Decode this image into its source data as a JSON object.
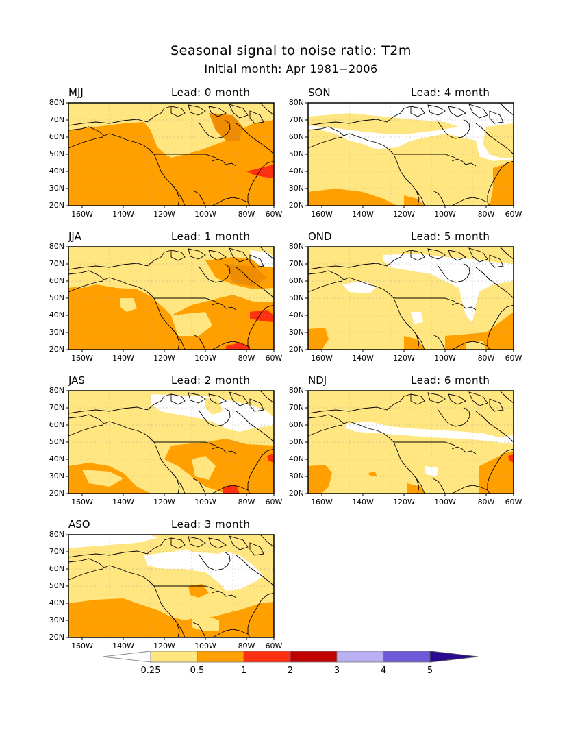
{
  "title": "Seasonal signal to noise ratio: T2m",
  "subtitle": "Initial month: Apr 1981−2006",
  "lat_labels": [
    "80N",
    "70N",
    "60N",
    "50N",
    "40N",
    "30N",
    "20N"
  ],
  "lon_labels": [
    "160W",
    "140W",
    "120W",
    "100W",
    "80W",
    "60W"
  ],
  "panels": [
    {
      "season": "MJJ",
      "lead": "Lead: 0 month"
    },
    {
      "season": "SON",
      "lead": "Lead: 4 month"
    },
    {
      "season": "JJA",
      "lead": "Lead: 1 month"
    },
    {
      "season": "OND",
      "lead": "Lead: 5 month"
    },
    {
      "season": "JAS",
      "lead": "Lead: 2 month"
    },
    {
      "season": "NDJ",
      "lead": "Lead: 6 month"
    },
    {
      "season": "ASO",
      "lead": "Lead: 3 month"
    }
  ],
  "colorbar": {
    "labels": [
      "0.25",
      "0.5",
      "1",
      "2",
      "3",
      "4",
      "5"
    ],
    "colors": [
      "#ffffff",
      "#ffe680",
      "#ffa000",
      "#ff3010",
      "#c00000",
      "#b8b0f0",
      "#6e5ad8",
      "#2a0a90"
    ]
  },
  "map_colors": {
    "white": "#ffffff",
    "light": "#ffe680",
    "orange": "#ffa000",
    "darkorange": "#f08c00",
    "red": "#ff3010"
  }
}
